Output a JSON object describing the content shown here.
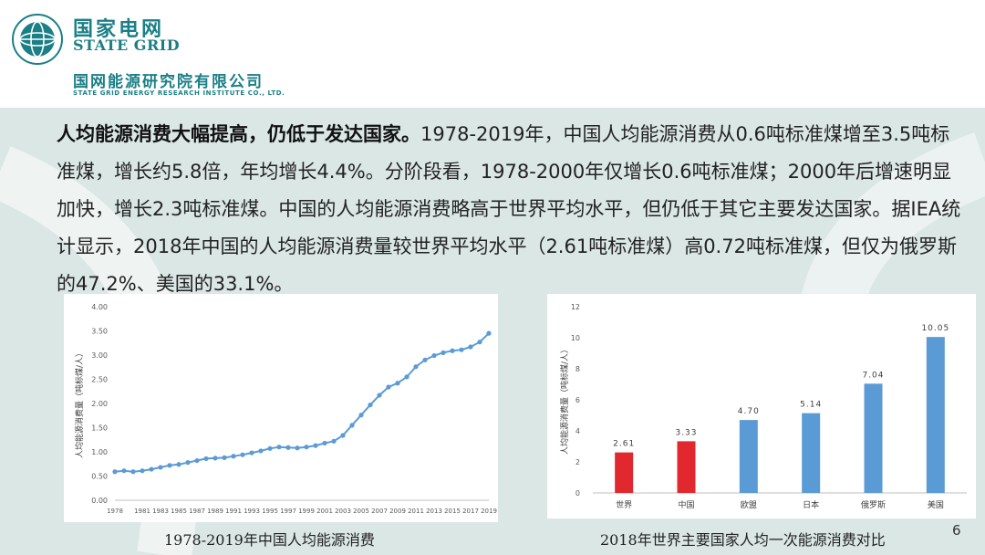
{
  "brand": {
    "cn": "国家电网",
    "en": "STATE GRID",
    "institute_cn": "国网能源研究院有限公司",
    "institute_en": "STATE GRID ENERGY RESEARCH INSTITUTE CO., LTD."
  },
  "paragraph": {
    "lead": "人均能源消费大幅提高，仍低于发达国家。",
    "body": "1978-2019年，中国人均能源消费从0.6吨标准煤增至3.5吨标准煤，增长约5.8倍，年均增长4.4%。分阶段看，1978-2000年仅增长0.6吨标准煤；2000年后增速明显加快，增长2.3吨标准煤。中国的人均能源消费略高于世界平均水平，但仍低于其它主要发达国家。据IEA统计显示，2018年中国的人均能源消费量较世界平均水平（2.61吨标准煤）高0.72吨标准煤，但仅为俄罗斯的47.2%、美国的33.1%。"
  },
  "captions": {
    "left": "1978-2019年中国人均能源消费",
    "right": "2018年世界主要国家人均一次能源消费对比"
  },
  "page_number": "6",
  "colors": {
    "brand": "#1b7f86",
    "line": "#5b9bd5",
    "bar_blue": "#5b9bd5",
    "bar_red": "#e0282e"
  },
  "chart_data": [
    {
      "type": "line",
      "ylabel": "人均能源消费量（吨标煤/人）",
      "ylim": [
        0,
        4
      ],
      "yticks": [
        "0.00",
        "0.50",
        "1.00",
        "1.50",
        "2.00",
        "2.50",
        "3.00",
        "3.50",
        "4.00"
      ],
      "xticks": [
        "1978",
        "1981",
        "1983",
        "1985",
        "1987",
        "1989",
        "1991",
        "1993",
        "1995",
        "1997",
        "1999",
        "2001",
        "2003",
        "2005",
        "2007",
        "2009",
        "2011",
        "2013",
        "2015",
        "2017",
        "2019"
      ],
      "x_start": 1978,
      "series": [
        {
          "values": [
            0.59,
            0.61,
            0.59,
            0.61,
            0.64,
            0.68,
            0.72,
            0.74,
            0.78,
            0.82,
            0.86,
            0.87,
            0.88,
            0.91,
            0.94,
            0.98,
            1.02,
            1.07,
            1.1,
            1.09,
            1.08,
            1.1,
            1.13,
            1.18,
            1.22,
            1.34,
            1.55,
            1.76,
            1.97,
            2.17,
            2.34,
            2.42,
            2.55,
            2.76,
            2.9,
            2.99,
            3.05,
            3.09,
            3.11,
            3.17,
            3.27,
            3.45
          ]
        }
      ],
      "grid": false
    },
    {
      "type": "bar",
      "ylabel": "人均能源消费量（吨标煤/人）",
      "categories": [
        "世界",
        "中国",
        "欧盟",
        "日本",
        "俄罗斯",
        "美国"
      ],
      "values": [
        2.61,
        3.33,
        4.7,
        5.14,
        7.04,
        10.05
      ],
      "value_labels": [
        "2.61",
        "3.33",
        "4.70",
        "5.14",
        "7.04",
        "10.05"
      ],
      "bar_colors": [
        "#e0282e",
        "#e0282e",
        "#5b9bd5",
        "#5b9bd5",
        "#5b9bd5",
        "#5b9bd5"
      ],
      "ylim": [
        0,
        12
      ],
      "yticks": [
        "0",
        "2",
        "4",
        "6",
        "8",
        "10",
        "12"
      ],
      "grid": false
    }
  ]
}
